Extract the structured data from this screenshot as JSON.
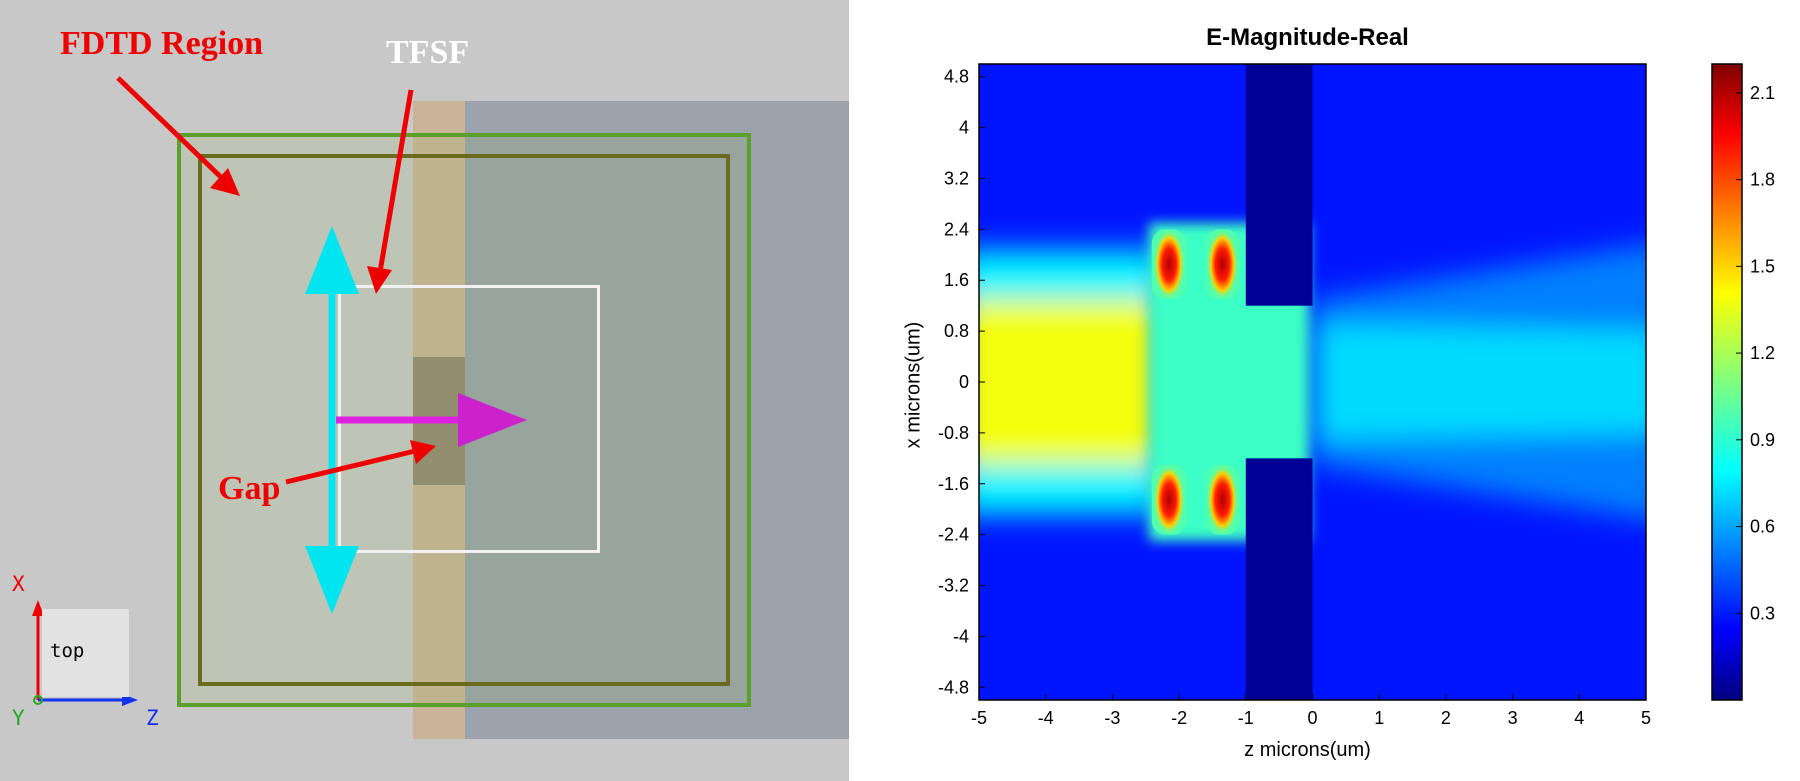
{
  "left_view": {
    "labels": {
      "fdtd_region": "FDTD Region",
      "tfsf": "TFSF",
      "gap": "Gap"
    },
    "view_label": "top",
    "axes": {
      "x": "X",
      "y": "Y",
      "z": "Z"
    },
    "colors": {
      "annotation": "#ee0000",
      "fdtd_outer": "#5aa02a",
      "fdtd_inner": "#6b6b1e",
      "polarization_arrow": "#00e5f0",
      "propagation_arrow": "#e020e0",
      "substrate": "#9ca3ad",
      "tfsf_strip": "#c9b49a"
    }
  },
  "chart_data": {
    "type": "heatmap",
    "title": "E-Magnitude-Real",
    "xlabel": "z microns(um)",
    "ylabel": "x microns(um)",
    "xlim": [
      -5,
      5
    ],
    "ylim": [
      -5,
      5
    ],
    "x_ticks": [
      -5,
      -4,
      -3,
      -2,
      -1,
      0,
      1,
      2,
      3,
      4,
      5
    ],
    "y_ticks": [
      4.8,
      4,
      3.2,
      2.4,
      1.6,
      0.8,
      0,
      -0.8,
      -1.6,
      -2.4,
      -3.2,
      -4,
      -4.8
    ],
    "colorbar": {
      "colormap": "jet",
      "min": 0,
      "max": 2.2,
      "ticks": [
        2.1,
        1.8,
        1.5,
        1.2,
        0.9,
        0.6,
        0.3
      ]
    },
    "structure": {
      "metal_blocks": [
        {
          "z": [
            -1,
            0
          ],
          "x": [
            1.2,
            5
          ]
        },
        {
          "z": [
            -1,
            0
          ],
          "x": [
            -5,
            -1.2
          ]
        }
      ],
      "gap_x": [
        -1.2,
        1.2
      ]
    },
    "field_regions": [
      {
        "name": "incident-beam",
        "z": [
          -5,
          -2.4
        ],
        "x_center": 0,
        "x_half_width": 1.3,
        "value": 1.35
      },
      {
        "name": "hot-spot",
        "z": [
          -2.35,
          -1.95
        ],
        "x": [
          1.3,
          2.4
        ],
        "value": 2.1
      },
      {
        "name": "hot-spot",
        "z": [
          -1.55,
          -1.15
        ],
        "x": [
          1.3,
          2.4
        ],
        "value": 2.1
      },
      {
        "name": "hot-spot",
        "z": [
          -2.35,
          -1.95
        ],
        "x": [
          -2.4,
          -1.3
        ],
        "value": 2.1
      },
      {
        "name": "hot-spot",
        "z": [
          -1.55,
          -1.15
        ],
        "x": [
          -2.4,
          -1.3
        ],
        "value": 2.1
      },
      {
        "name": "transmitted-beam",
        "z": [
          0,
          5
        ],
        "x_center": 0,
        "x_half_width": 1.0,
        "value": 0.75
      }
    ]
  }
}
